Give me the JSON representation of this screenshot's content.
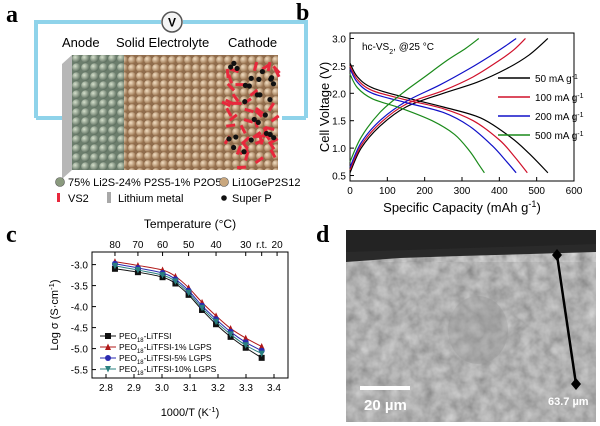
{
  "panels": {
    "a": {
      "letter": "a",
      "meter": "V",
      "labels": {
        "anode": "Anode",
        "electrolyte": "Solid Electrolyte",
        "cathode": "Cathode"
      },
      "legend": [
        {
          "kind": "sphere",
          "color": "#8a9a7e",
          "text": "75% Li2S-24% P2S5-1% P2O5"
        },
        {
          "kind": "sphere",
          "color": "#c9a77e",
          "text": "Li10GeP2S12"
        },
        {
          "kind": "bar",
          "color": "#e8283c",
          "text": "VS2"
        },
        {
          "kind": "rect",
          "color": "#a8a8a8",
          "text": "Lithium metal"
        },
        {
          "kind": "dot",
          "color": "#111111",
          "text": "Super P"
        }
      ]
    },
    "b": {
      "letter": "b",
      "annotation": "hc-VS2, @25 °C",
      "chart_data": {
        "type": "line",
        "xlabel": "Specific Capacity (mAh g-1)",
        "ylabel": "Cell Voltage (V)",
        "xlim": [
          0,
          600
        ],
        "ylim": [
          0.4,
          3.1
        ],
        "xticks": [
          0,
          100,
          200,
          300,
          400,
          500,
          600
        ],
        "yticks": [
          0.5,
          1.0,
          1.5,
          2.0,
          2.5,
          3.0
        ],
        "legend_placement": "right",
        "series": [
          {
            "name": "50 mA g-1",
            "color": "#000000",
            "discharge": [
              [
                0,
                2.55
              ],
              [
                20,
                2.3
              ],
              [
                60,
                2.1
              ],
              [
                150,
                1.92
              ],
              [
                250,
                1.75
              ],
              [
                350,
                1.55
              ],
              [
                430,
                1.2
              ],
              [
                480,
                0.9
              ],
              [
                530,
                0.55
              ]
            ],
            "charge": [
              [
                0,
                0.55
              ],
              [
                30,
                1.0
              ],
              [
                80,
                1.4
              ],
              [
                150,
                1.75
              ],
              [
                250,
                2.0
              ],
              [
                340,
                2.2
              ],
              [
                420,
                2.45
              ],
              [
                480,
                2.7
              ],
              [
                530,
                3.0
              ]
            ]
          },
          {
            "name": "100 mA g-1",
            "color": "#d0102a",
            "discharge": [
              [
                0,
                2.5
              ],
              [
                20,
                2.25
              ],
              [
                60,
                2.05
              ],
              [
                150,
                1.88
              ],
              [
                250,
                1.72
              ],
              [
                330,
                1.5
              ],
              [
                400,
                1.15
              ],
              [
                440,
                0.85
              ],
              [
                475,
                0.55
              ]
            ],
            "charge": [
              [
                0,
                0.6
              ],
              [
                30,
                1.05
              ],
              [
                80,
                1.45
              ],
              [
                150,
                1.8
              ],
              [
                250,
                2.05
              ],
              [
                330,
                2.3
              ],
              [
                400,
                2.6
              ],
              [
                440,
                2.8
              ],
              [
                470,
                3.0
              ]
            ]
          },
          {
            "name": "200 mA g-1",
            "color": "#1010c8",
            "discharge": [
              [
                0,
                2.45
              ],
              [
                20,
                2.2
              ],
              [
                60,
                2.0
              ],
              [
                150,
                1.83
              ],
              [
                250,
                1.65
              ],
              [
                320,
                1.4
              ],
              [
                380,
                1.05
              ],
              [
                420,
                0.75
              ],
              [
                445,
                0.55
              ]
            ],
            "charge": [
              [
                0,
                0.65
              ],
              [
                30,
                1.1
              ],
              [
                80,
                1.5
              ],
              [
                150,
                1.85
              ],
              [
                240,
                2.15
              ],
              [
                320,
                2.45
              ],
              [
                380,
                2.7
              ],
              [
                420,
                2.88
              ],
              [
                445,
                3.0
              ]
            ]
          },
          {
            "name": "500 mA g-1",
            "color": "#1a8a1a",
            "discharge": [
              [
                0,
                2.35
              ],
              [
                20,
                2.1
              ],
              [
                60,
                1.9
              ],
              [
                140,
                1.72
              ],
              [
                220,
                1.5
              ],
              [
                280,
                1.25
              ],
              [
                320,
                0.95
              ],
              [
                345,
                0.7
              ],
              [
                360,
                0.55
              ]
            ],
            "charge": [
              [
                0,
                0.75
              ],
              [
                30,
                1.2
              ],
              [
                80,
                1.65
              ],
              [
                140,
                2.0
              ],
              [
                200,
                2.3
              ],
              [
                260,
                2.6
              ],
              [
                310,
                2.82
              ],
              [
                345,
                3.0
              ]
            ]
          }
        ]
      }
    },
    "c": {
      "letter": "c",
      "chart_data": {
        "type": "line",
        "xlabel": "1000/T  (K-1)",
        "ylabel": "Log σ  (S·cm-1)",
        "top_axis_label": "Temperature  (°C)",
        "top_ticks": [
          {
            "label": "80",
            "x": 2.832
          },
          {
            "label": "70",
            "x": 2.914
          },
          {
            "label": "60",
            "x": 3.002
          },
          {
            "label": "50",
            "x": 3.095
          },
          {
            "label": "40",
            "x": 3.193
          },
          {
            "label": "30",
            "x": 3.299
          },
          {
            "label": "r.t.",
            "x": 3.356
          },
          {
            "label": "20",
            "x": 3.411
          }
        ],
        "xlim": [
          2.75,
          3.45
        ],
        "ylim": [
          -5.7,
          -2.7
        ],
        "xticks": [
          2.8,
          2.9,
          3.0,
          3.1,
          3.2,
          3.3,
          3.4
        ],
        "yticks": [
          -3.0,
          -3.5,
          -4.0,
          -4.5,
          -5.0,
          -5.5
        ],
        "legend_placement": "bottom-left",
        "x": [
          2.832,
          2.914,
          3.002,
          3.048,
          3.095,
          3.143,
          3.193,
          3.245,
          3.299,
          3.356
        ],
        "series": [
          {
            "name": "PEO18-LiTFSI",
            "marker": "square",
            "color": "#111111",
            "values": [
              -3.1,
              -3.18,
              -3.3,
              -3.45,
              -3.72,
              -4.08,
              -4.42,
              -4.72,
              -4.98,
              -5.22
            ]
          },
          {
            "name": "PEO18-LiTFSI-1% LGPS",
            "marker": "triangle",
            "color": "#b01818",
            "values": [
              -2.93,
              -3.02,
              -3.13,
              -3.28,
              -3.55,
              -3.9,
              -4.22,
              -4.52,
              -4.75,
              -4.95
            ]
          },
          {
            "name": "PEO18-LiTFSI-5% LGPS",
            "marker": "circle",
            "color": "#2a2ab0",
            "values": [
              -2.98,
              -3.08,
              -3.2,
              -3.35,
              -3.62,
              -3.98,
              -4.3,
              -4.6,
              -4.85,
              -5.05
            ]
          },
          {
            "name": "PEO18-LiTFSI-10% LGPS",
            "marker": "triangle-down",
            "color": "#2a8080",
            "values": [
              -3.03,
              -3.13,
              -3.25,
              -3.4,
              -3.67,
              -4.03,
              -4.36,
              -4.66,
              -4.92,
              -5.12
            ]
          }
        ]
      }
    },
    "d": {
      "letter": "d",
      "scale_bar": "20 µm",
      "thickness": "63.7 µm"
    }
  }
}
